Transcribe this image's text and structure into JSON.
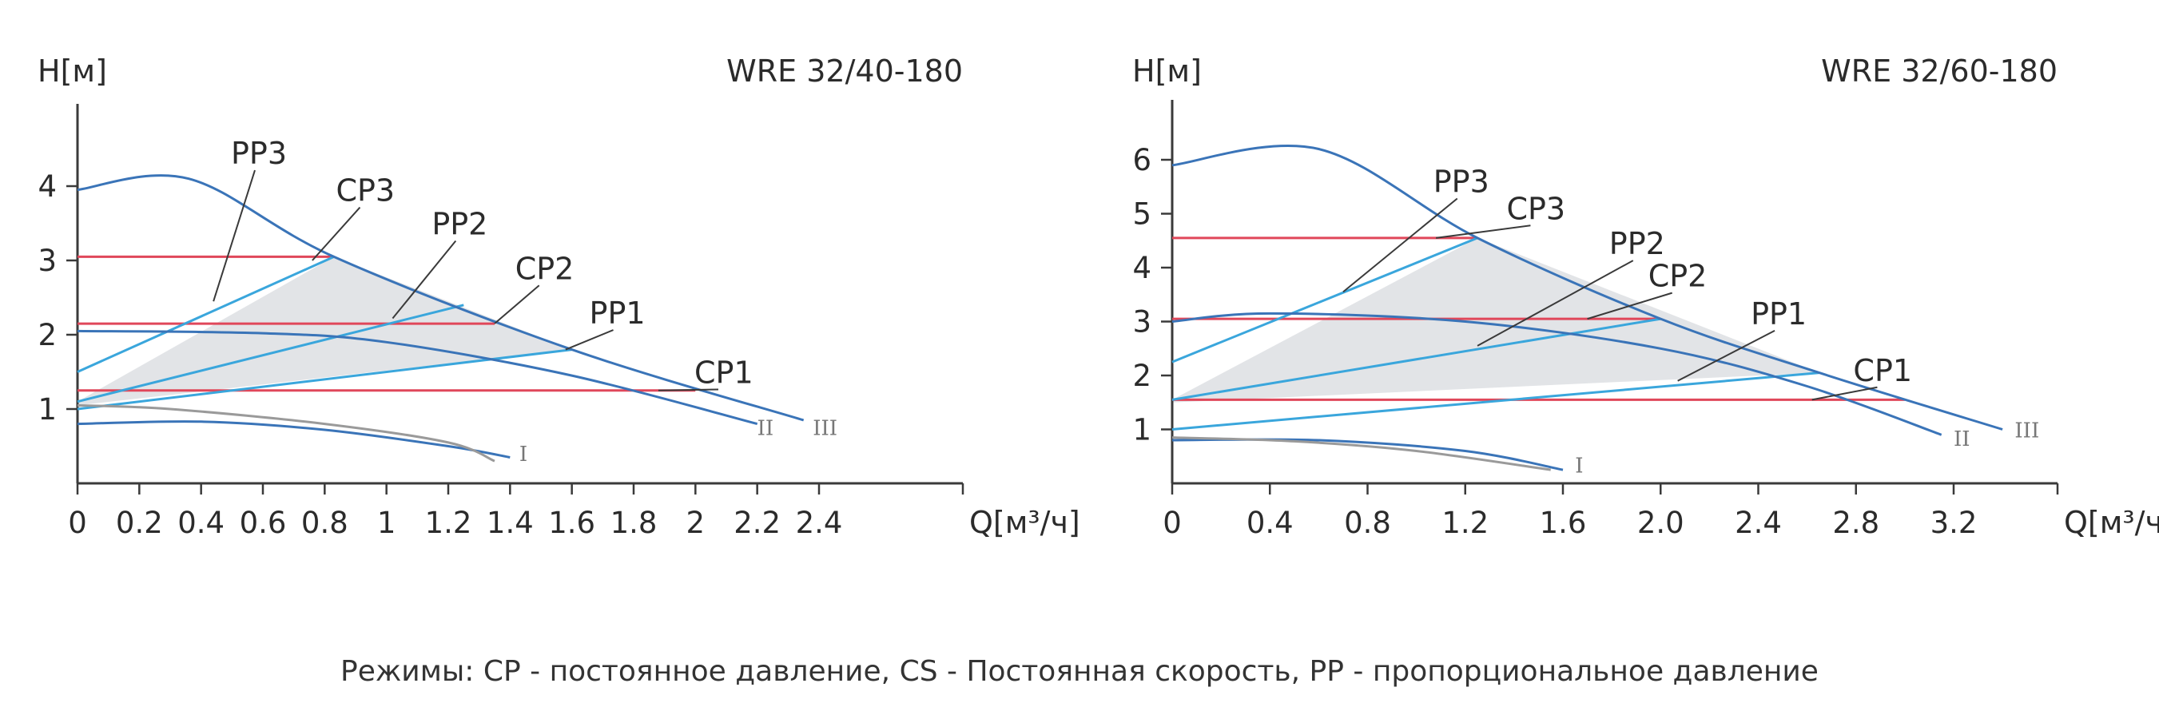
{
  "caption": "Режимы: CP - постоянное давление, CS - Постоянная скорость, PP - пропорциональное давление",
  "colors": {
    "region": "#e2e4e7",
    "speed": "#3a74b8",
    "pp": "#3aa6dc",
    "cp": "#e0475a",
    "low": "#9a9a9a",
    "axis": "#3a3a3a"
  },
  "chart_data": [
    {
      "type": "line",
      "title": "WRE 32/40-180",
      "ylabel": "H[м]",
      "xlabel": "Q[м³/ч]",
      "xlim": [
        0,
        2.6
      ],
      "ylim": [
        0,
        5
      ],
      "x_ticks": [
        0,
        0.2,
        0.4,
        0.6,
        0.8,
        1,
        1.2,
        1.4,
        1.6,
        1.8,
        2,
        2.2,
        2.4
      ],
      "x_tick_labels": [
        "0",
        "0.2",
        "0.4",
        "0.6",
        "0.8",
        "1",
        "1.2",
        "1.4",
        "1.6",
        "1.8",
        "2",
        "2.2",
        "2.4"
      ],
      "y_ticks": [
        1,
        2,
        3,
        4
      ],
      "y_tick_labels": [
        "1",
        "2",
        "3",
        "4"
      ],
      "region": [
        [
          0,
          1.1
        ],
        [
          0.83,
          3.05
        ],
        [
          1.6,
          1.8
        ],
        [
          0,
          1.05
        ]
      ],
      "speed_curves": [
        {
          "name": "III",
          "points": [
            [
              0,
              3.95
            ],
            [
              0.36,
              4.1
            ],
            [
              0.83,
              3.05
            ],
            [
              1.6,
              1.8
            ],
            [
              2.35,
              0.85
            ]
          ]
        },
        {
          "name": "II",
          "points": [
            [
              0,
              2.05
            ],
            [
              0.6,
              2.02
            ],
            [
              1.0,
              1.9
            ],
            [
              1.6,
              1.45
            ],
            [
              2.2,
              0.8
            ]
          ]
        },
        {
          "name": "I",
          "points": [
            [
              0,
              0.8
            ],
            [
              0.4,
              0.83
            ],
            [
              0.8,
              0.72
            ],
            [
              1.2,
              0.5
            ],
            [
              1.4,
              0.35
            ]
          ]
        },
        {
          "name": "",
          "points": [
            [
              0,
              1.05
            ],
            [
              0.3,
              1.0
            ],
            [
              0.8,
              0.8
            ],
            [
              1.2,
              0.55
            ],
            [
              1.35,
              0.3
            ]
          ]
        }
      ],
      "pp_lines": [
        {
          "name": "PP3",
          "points": [
            [
              0,
              1.5
            ],
            [
              0.83,
              3.05
            ]
          ]
        },
        {
          "name": "PP2",
          "points": [
            [
              0,
              1.1
            ],
            [
              1.25,
              2.4
            ]
          ]
        },
        {
          "name": "PP1",
          "points": [
            [
              0,
              1.0
            ],
            [
              1.6,
              1.8
            ]
          ]
        }
      ],
      "cp_lines": [
        {
          "name": "CP3",
          "points": [
            [
              0,
              3.05
            ],
            [
              0.83,
              3.05
            ]
          ]
        },
        {
          "name": "CP2",
          "points": [
            [
              0,
              2.15
            ],
            [
              1.35,
              2.15
            ]
          ]
        },
        {
          "name": "CP1",
          "points": [
            [
              0,
              1.25
            ],
            [
              2.0,
              1.25
            ]
          ]
        }
      ],
      "labels": [
        {
          "text": "PP3",
          "x": 0.6,
          "y": 4.3,
          "lx": 0.44,
          "ly": 2.45
        },
        {
          "text": "CP3",
          "x": 0.94,
          "y": 3.8,
          "lx": 0.76,
          "ly": 3.0
        },
        {
          "text": "PP2",
          "x": 1.25,
          "y": 3.35,
          "lx": 1.02,
          "ly": 2.22
        },
        {
          "text": "CP2",
          "x": 1.52,
          "y": 2.75,
          "lx": 1.35,
          "ly": 2.15
        },
        {
          "text": "PP1",
          "x": 1.76,
          "y": 2.15,
          "lx": 1.58,
          "ly": 1.8
        },
        {
          "text": "CP1",
          "x": 2.1,
          "y": 1.35,
          "lx": 1.88,
          "ly": 1.25
        }
      ],
      "roman_labels": [
        {
          "text": "III",
          "x": 2.38,
          "y": 0.65
        },
        {
          "text": "II",
          "x": 2.2,
          "y": 0.65
        },
        {
          "text": "I",
          "x": 1.43,
          "y": 0.3
        }
      ]
    },
    {
      "type": "line",
      "title": "WRE 32/60-180",
      "ylabel": "H[м]",
      "xlabel": "Q[м³/ч]",
      "xlim": [
        0,
        3.6
      ],
      "ylim": [
        0,
        7
      ],
      "x_ticks": [
        0,
        0.4,
        0.8,
        1.2,
        1.6,
        2.0,
        2.4,
        2.8,
        3.2
      ],
      "x_tick_labels": [
        "0",
        "0.4",
        "0.8",
        "1.2",
        "1.6",
        "2.0",
        "2.4",
        "2.8",
        "3.2"
      ],
      "y_ticks": [
        1,
        2,
        3,
        4,
        5,
        6
      ],
      "y_tick_labels": [
        "1",
        "2",
        "3",
        "4",
        "5",
        "6"
      ],
      "region": [
        [
          0,
          1.55
        ],
        [
          1.25,
          4.55
        ],
        [
          2.65,
          2.05
        ],
        [
          0,
          1.5
        ]
      ],
      "speed_curves": [
        {
          "name": "III",
          "points": [
            [
              0,
              5.9
            ],
            [
              0.6,
              6.2
            ],
            [
              1.25,
              4.55
            ],
            [
              2.0,
              3.05
            ],
            [
              2.65,
              2.05
            ],
            [
              3.4,
              1.0
            ]
          ]
        },
        {
          "name": "II",
          "points": [
            [
              0,
              3.0
            ],
            [
              0.4,
              3.15
            ],
            [
              1.2,
              3.0
            ],
            [
              2.0,
              2.5
            ],
            [
              2.6,
              1.8
            ],
            [
              3.15,
              0.9
            ]
          ]
        },
        {
          "name": "I",
          "points": [
            [
              0,
              0.8
            ],
            [
              0.6,
              0.8
            ],
            [
              1.2,
              0.6
            ],
            [
              1.6,
              0.25
            ]
          ]
        },
        {
          "name": "",
          "points": [
            [
              0,
              0.85
            ],
            [
              0.5,
              0.78
            ],
            [
              1.0,
              0.6
            ],
            [
              1.55,
              0.25
            ]
          ]
        }
      ],
      "pp_lines": [
        {
          "name": "PP3",
          "points": [
            [
              0,
              2.25
            ],
            [
              1.25,
              4.55
            ]
          ]
        },
        {
          "name": "PP2",
          "points": [
            [
              0,
              1.55
            ],
            [
              2.0,
              3.05
            ]
          ]
        },
        {
          "name": "PP1",
          "points": [
            [
              0,
              1.0
            ],
            [
              2.65,
              2.05
            ]
          ]
        }
      ],
      "cp_lines": [
        {
          "name": "CP3",
          "points": [
            [
              0,
              4.55
            ],
            [
              1.25,
              4.55
            ]
          ]
        },
        {
          "name": "CP2",
          "points": [
            [
              0,
              3.05
            ],
            [
              2.0,
              3.05
            ]
          ]
        },
        {
          "name": "CP1",
          "points": [
            [
              0,
              1.55
            ],
            [
              3.0,
              1.55
            ]
          ]
        }
      ],
      "labels": [
        {
          "text": "PP3",
          "x": 1.2,
          "y": 5.4,
          "lx": 0.7,
          "ly": 3.55
        },
        {
          "text": "CP3",
          "x": 1.5,
          "y": 4.9,
          "lx": 1.08,
          "ly": 4.55
        },
        {
          "text": "PP2",
          "x": 1.92,
          "y": 4.25,
          "lx": 1.25,
          "ly": 2.55
        },
        {
          "text": "CP2",
          "x": 2.08,
          "y": 3.65,
          "lx": 1.7,
          "ly": 3.05
        },
        {
          "text": "PP1",
          "x": 2.5,
          "y": 2.95,
          "lx": 2.07,
          "ly": 1.9
        },
        {
          "text": "CP1",
          "x": 2.92,
          "y": 1.9,
          "lx": 2.62,
          "ly": 1.55
        }
      ],
      "roman_labels": [
        {
          "text": "III",
          "x": 3.45,
          "y": 0.85
        },
        {
          "text": "II",
          "x": 3.2,
          "y": 0.7
        },
        {
          "text": "I",
          "x": 1.65,
          "y": 0.2
        }
      ]
    }
  ]
}
